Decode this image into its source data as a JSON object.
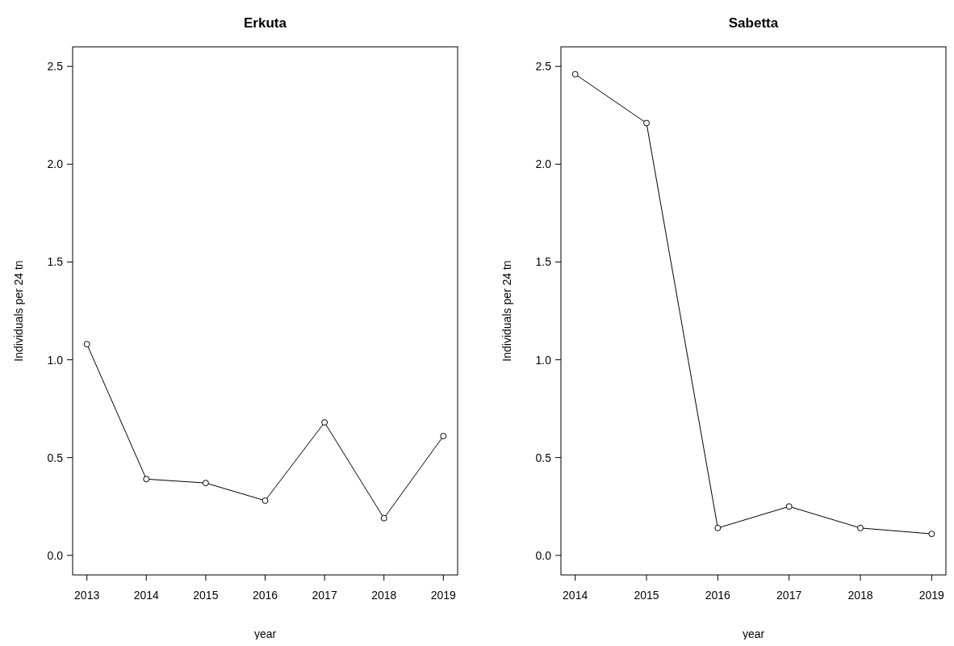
{
  "chart_data": [
    {
      "type": "line",
      "title": "Erkuta",
      "xlabel": "year",
      "ylabel": "Individuals per 24 tn",
      "x": [
        2013,
        2014,
        2015,
        2016,
        2017,
        2018,
        2019
      ],
      "series": [
        {
          "color": "#000000",
          "values": [
            1.08,
            0.39,
            0.37,
            0.28,
            0.68,
            0.19,
            0.61
          ]
        }
      ],
      "xlim": [
        2012.76,
        2019.24
      ],
      "xticks": [
        2013,
        2014,
        2015,
        2016,
        2017,
        2018,
        2019
      ],
      "ylim": [
        -0.1,
        2.6
      ],
      "yticks": [
        {
          "value": 0,
          "label": "0.0"
        },
        0.5,
        {
          "value": 1,
          "label": "1.0"
        },
        1.5,
        {
          "value": 2,
          "label": "2.0"
        },
        2.5
      ],
      "marker": "circle",
      "line_style": "solid",
      "grid": false
    },
    {
      "type": "line",
      "title": "Sabetta",
      "xlabel": "year",
      "ylabel": "Individuals per 24 tn",
      "x": [
        2014,
        2015,
        2016,
        2017,
        2018,
        2019
      ],
      "series": [
        {
          "color": "#000000",
          "values": [
            2.46,
            2.21,
            0.14,
            0.25,
            0.14,
            0.11
          ]
        }
      ],
      "xlim": [
        2013.8,
        2019.2
      ],
      "xticks": [
        2014,
        2015,
        2016,
        2017,
        2018,
        2019
      ],
      "ylim": [
        -0.1,
        2.6
      ],
      "yticks": [
        {
          "value": 0,
          "label": "0.0"
        },
        0.5,
        {
          "value": 1,
          "label": "1.0"
        },
        1.5,
        {
          "value": 2,
          "label": "2.0"
        },
        2.5
      ],
      "marker": "circle",
      "line_style": "solid",
      "grid": false
    }
  ]
}
